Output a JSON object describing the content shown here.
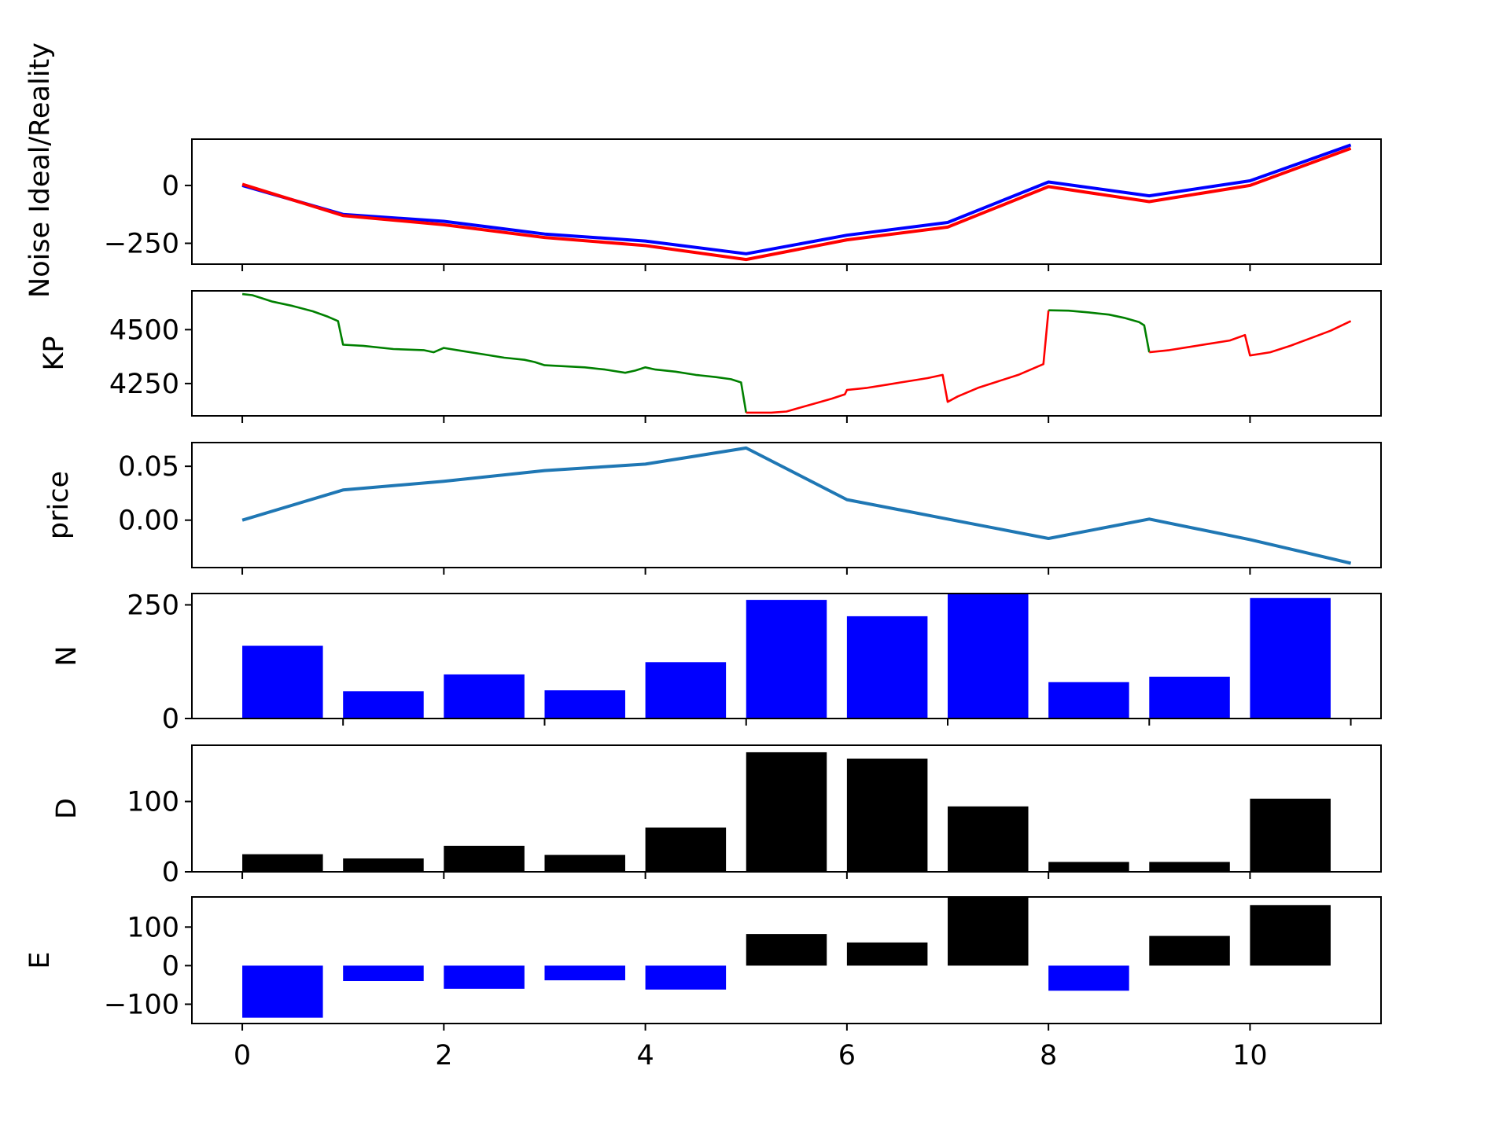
{
  "chart_data": [
    {
      "type": "line",
      "ylabel": "Noise Ideal/Reality",
      "xlim": [
        -0.5,
        11.3
      ],
      "ylim": [
        -340,
        200
      ],
      "yticks": [
        0,
        -250
      ],
      "ytick_labels": [
        "0",
        "−250"
      ],
      "series": [
        {
          "color": "#0000ff",
          "x": [
            0,
            1,
            2,
            3,
            4,
            5,
            6,
            7,
            8,
            9,
            10,
            11
          ],
          "y": [
            0,
            -125,
            -155,
            -210,
            -240,
            -295,
            -215,
            -160,
            15,
            -45,
            20,
            175
          ]
        },
        {
          "color": "#ff0000",
          "x": [
            0,
            1,
            2,
            3,
            4,
            5,
            6,
            7,
            8,
            9,
            10,
            11
          ],
          "y": [
            5,
            -130,
            -170,
            -225,
            -260,
            -320,
            -235,
            -180,
            -5,
            -70,
            0,
            160
          ]
        }
      ]
    },
    {
      "type": "line",
      "ylabel": "KP",
      "xlim": [
        -0.5,
        11.3
      ],
      "ylim": [
        4100,
        4680
      ],
      "yticks": [
        4500,
        4250
      ],
      "ytick_labels": [
        "4500",
        "4250"
      ],
      "series": [
        {
          "color": "#008000",
          "x": [
            0,
            0.1,
            0.3,
            0.5,
            0.7,
            0.85,
            0.95,
            1.0,
            1.2,
            1.5,
            1.8,
            1.9,
            2.0,
            2.2,
            2.4,
            2.6,
            2.8,
            2.9,
            3.0,
            3.2,
            3.4,
            3.6,
            3.8,
            3.9,
            4.0,
            4.1,
            4.3,
            4.5,
            4.7,
            4.85,
            4.95,
            5.0
          ],
          "y": [
            4665,
            4660,
            4630,
            4610,
            4585,
            4560,
            4540,
            4430,
            4425,
            4410,
            4405,
            4395,
            4415,
            4400,
            4385,
            4370,
            4360,
            4350,
            4335,
            4330,
            4325,
            4315,
            4300,
            4310,
            4325,
            4315,
            4305,
            4290,
            4280,
            4270,
            4255,
            4115
          ]
        },
        {
          "color": "#ff0000",
          "x": [
            5.0,
            5.1,
            5.25,
            5.4,
            5.55,
            5.7,
            5.85,
            5.98,
            6.0,
            6.2,
            6.4,
            6.6,
            6.8,
            6.95,
            7.0,
            7.1,
            7.3,
            7.5,
            7.7,
            7.95,
            8.0
          ],
          "y": [
            4115,
            4115,
            4115,
            4120,
            4140,
            4160,
            4180,
            4200,
            4220,
            4230,
            4245,
            4260,
            4275,
            4290,
            4165,
            4190,
            4230,
            4260,
            4290,
            4340,
            4590
          ]
        },
        {
          "color": "#008000",
          "x": [
            8.0,
            8.2,
            8.4,
            8.6,
            8.75,
            8.9,
            8.95,
            9.0
          ],
          "y": [
            4590,
            4588,
            4580,
            4570,
            4555,
            4535,
            4520,
            4395
          ]
        },
        {
          "color": "#ff0000",
          "x": [
            9.0,
            9.2,
            9.4,
            9.6,
            9.8,
            9.95,
            10.0,
            10.2,
            10.4,
            10.6,
            10.8,
            11.0
          ],
          "y": [
            4395,
            4405,
            4420,
            4435,
            4450,
            4475,
            4380,
            4395,
            4425,
            4460,
            4495,
            4540
          ]
        }
      ]
    },
    {
      "type": "line",
      "ylabel": "price",
      "xlim": [
        -0.5,
        11.3
      ],
      "ylim": [
        -0.044,
        0.072
      ],
      "yticks": [
        0.05,
        0.0
      ],
      "ytick_labels": [
        "0.05",
        "0.00"
      ],
      "series": [
        {
          "color": "#1f77b4",
          "x": [
            0,
            1,
            2,
            3,
            4,
            5,
            6,
            7,
            8,
            9,
            10,
            11
          ],
          "y": [
            0,
            0.028,
            0.036,
            0.046,
            0.052,
            0.067,
            0.019,
            0.001,
            -0.017,
            0.001,
            -0.018,
            -0.04
          ]
        }
      ]
    },
    {
      "type": "bar",
      "ylabel": "N",
      "xlim": [
        -0.5,
        11.3
      ],
      "ylim": [
        0,
        275
      ],
      "yticks": [
        250,
        0
      ],
      "ytick_labels": [
        "250",
        "0"
      ],
      "bar_width": 0.8,
      "color": "#0000ff",
      "x": [
        0,
        1,
        2,
        3,
        4,
        5,
        6,
        7,
        8,
        9,
        10
      ],
      "values": [
        160,
        60,
        97,
        62,
        124,
        261,
        225,
        285,
        80,
        92,
        265
      ]
    },
    {
      "type": "bar",
      "ylabel": "D",
      "xlim": [
        -0.5,
        11.3
      ],
      "ylim": [
        0,
        180
      ],
      "yticks": [
        100,
        0
      ],
      "ytick_labels": [
        "100",
        "0"
      ],
      "bar_width": 0.8,
      "color": "#000000",
      "x": [
        0,
        1,
        2,
        3,
        4,
        5,
        6,
        7,
        8,
        9,
        10
      ],
      "values": [
        25,
        19,
        37,
        24,
        63,
        170,
        161,
        93,
        14,
        14,
        104
      ]
    },
    {
      "type": "bar",
      "ylabel": "E",
      "xlim": [
        -0.5,
        11.3
      ],
      "ylim": [
        -150,
        178
      ],
      "yticks": [
        100,
        0,
        -100
      ],
      "ytick_labels": [
        "100",
        "0",
        "−100"
      ],
      "xticks": [
        0,
        2,
        4,
        6,
        8,
        10
      ],
      "xtick_labels": [
        "0",
        "2",
        "4",
        "6",
        "8",
        "10"
      ],
      "bar_width": 0.8,
      "positive_color": "#000000",
      "negative_color": "#0000ff",
      "x": [
        0,
        1,
        2,
        3,
        4,
        5,
        6,
        7,
        8,
        9,
        10
      ],
      "values": [
        -135,
        -40,
        -60,
        -38,
        -62,
        82,
        60,
        200,
        -65,
        77,
        157
      ]
    }
  ]
}
